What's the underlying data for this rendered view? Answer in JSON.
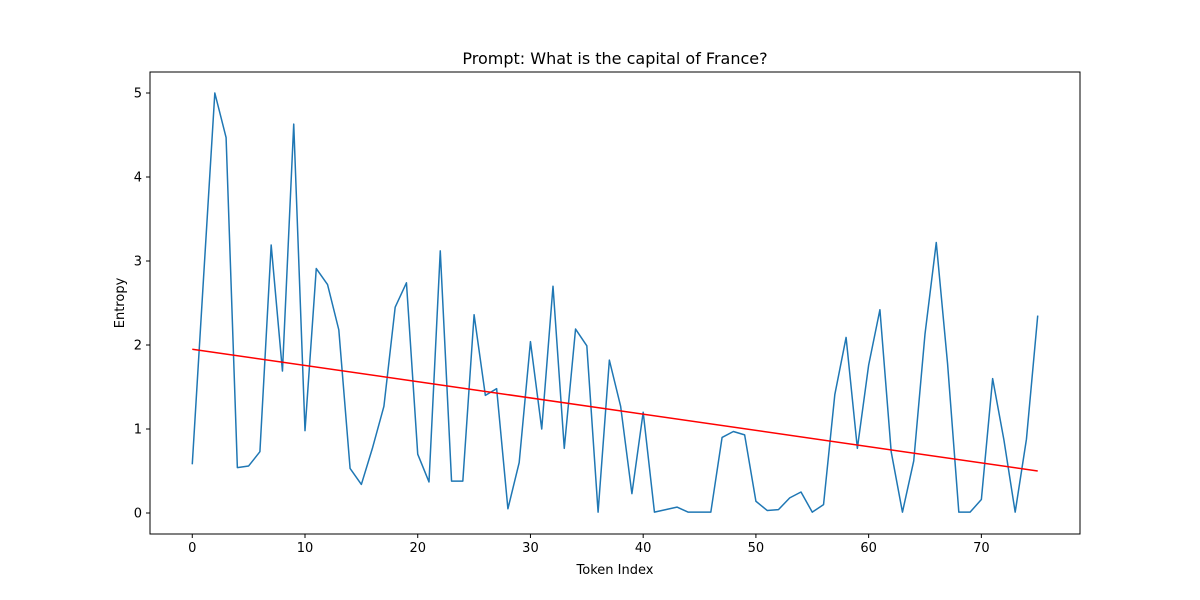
{
  "chart_data": {
    "type": "line",
    "title": "Prompt: What is the capital of France?",
    "xlabel": "Token Index",
    "ylabel": "Entropy",
    "xlim": [
      -3.75,
      78.75
    ],
    "ylim": [
      -0.25,
      5.25
    ],
    "xticks": [
      0,
      10,
      20,
      30,
      40,
      50,
      60,
      70
    ],
    "yticks": [
      0,
      1,
      2,
      3,
      4,
      5
    ],
    "grid": false,
    "legend": "none",
    "series": [
      {
        "color": "#1f77b4",
        "x": [
          0,
          1,
          2,
          3,
          4,
          5,
          6,
          7,
          8,
          9,
          10,
          11,
          12,
          13,
          14,
          15,
          16,
          17,
          18,
          19,
          20,
          21,
          22,
          23,
          24,
          25,
          26,
          27,
          28,
          29,
          30,
          31,
          32,
          33,
          34,
          35,
          36,
          37,
          38,
          39,
          40,
          41,
          42,
          43,
          44,
          45,
          46,
          47,
          48,
          49,
          50,
          51,
          52,
          53,
          54,
          55,
          56,
          57,
          58,
          59,
          60,
          61,
          62,
          63,
          64,
          65,
          66,
          67,
          68,
          69,
          70,
          71,
          72,
          73,
          74,
          75
        ],
        "values": [
          0.58,
          2.8,
          5.0,
          4.47,
          0.54,
          0.56,
          0.73,
          3.19,
          1.69,
          4.63,
          0.98,
          2.91,
          2.72,
          2.18,
          0.53,
          0.34,
          0.78,
          1.27,
          2.45,
          2.74,
          0.7,
          0.37,
          3.12,
          0.38,
          0.38,
          2.36,
          1.4,
          1.48,
          0.05,
          0.6,
          2.04,
          1.0,
          2.7,
          0.77,
          2.19,
          1.99,
          0.01,
          1.82,
          1.27,
          0.23,
          1.2,
          0.01,
          0.04,
          0.07,
          0.01,
          0.01,
          0.01,
          0.9,
          0.97,
          0.93,
          0.14,
          0.03,
          0.04,
          0.18,
          0.25,
          0.01,
          0.1,
          1.41,
          2.09,
          0.77,
          1.76,
          2.42,
          0.73,
          0.01,
          0.62,
          2.13,
          3.22,
          1.78,
          0.01,
          0.01,
          0.16,
          1.6,
          0.87,
          0.01,
          0.88,
          2.35
        ]
      },
      {
        "color": "#ff0000",
        "x": [
          0,
          75
        ],
        "values": [
          1.95,
          0.5
        ]
      }
    ]
  }
}
